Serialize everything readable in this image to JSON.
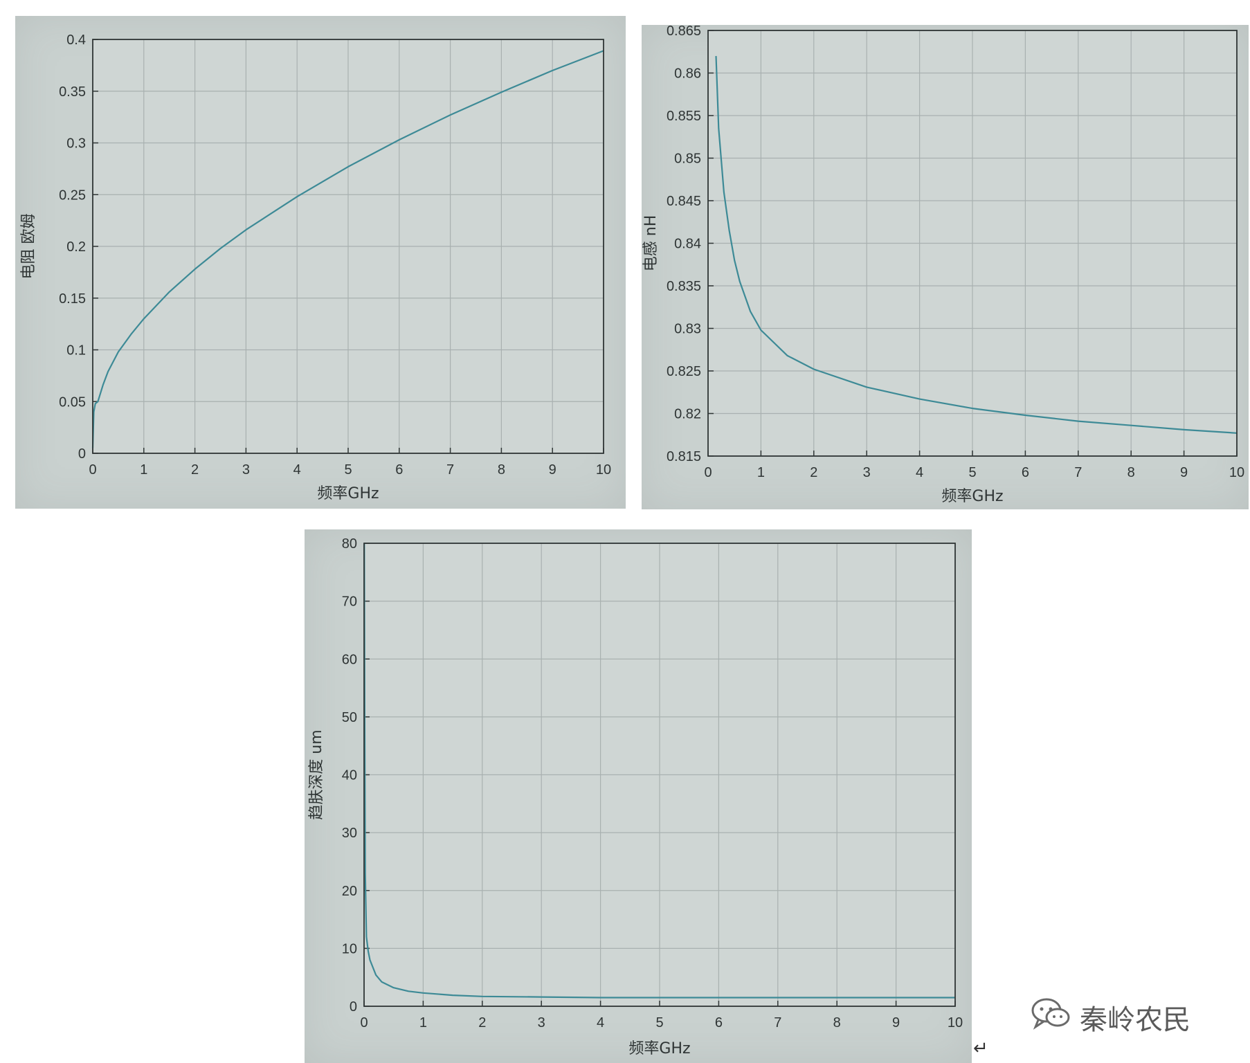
{
  "chart_data": [
    {
      "type": "line",
      "xlabel": "频率GHz",
      "ylabel": "电阻 欧姆",
      "xlim": [
        0,
        10
      ],
      "ylim": [
        0,
        0.4
      ],
      "xticks": [
        "0",
        "1",
        "2",
        "3",
        "4",
        "5",
        "6",
        "7",
        "8",
        "9",
        "10"
      ],
      "yticks": [
        "0",
        "0.05",
        "0.1",
        "0.15",
        "0.2",
        "0.25",
        "0.3",
        "0.35",
        "0.4"
      ],
      "grid": true,
      "line_color": "#3d8a96",
      "series": [
        {
          "x": [
            0,
            0.02,
            0.05,
            0.1,
            0.15,
            0.2,
            0.3,
            0.5,
            0.75,
            1,
            1.5,
            2,
            2.5,
            3,
            4,
            5,
            6,
            7,
            8,
            9,
            10
          ],
          "values": [
            0.005,
            0.04,
            0.048,
            0.05,
            0.058,
            0.066,
            0.079,
            0.098,
            0.115,
            0.13,
            0.156,
            0.178,
            0.198,
            0.216,
            0.248,
            0.277,
            0.303,
            0.327,
            0.349,
            0.37,
            0.389
          ]
        }
      ]
    },
    {
      "type": "line",
      "xlabel": "频率GHz",
      "ylabel": "电感 nH",
      "xlim": [
        0,
        10
      ],
      "ylim": [
        0.815,
        0.865
      ],
      "xticks": [
        "0",
        "1",
        "2",
        "3",
        "4",
        "5",
        "6",
        "7",
        "8",
        "9",
        "10"
      ],
      "yticks": [
        "0.815",
        "0.82",
        "0.825",
        "0.83",
        "0.835",
        "0.84",
        "0.845",
        "0.85",
        "0.855",
        "0.86",
        "0.865"
      ],
      "grid": true,
      "line_color": "#3d8a96",
      "series": [
        {
          "x": [
            0.15,
            0.2,
            0.3,
            0.4,
            0.5,
            0.6,
            0.8,
            1,
            1.5,
            2,
            3,
            4,
            5,
            6,
            7,
            8,
            9,
            10
          ],
          "values": [
            0.862,
            0.8535,
            0.846,
            0.8415,
            0.838,
            0.8355,
            0.832,
            0.8298,
            0.8268,
            0.8252,
            0.8231,
            0.8217,
            0.8206,
            0.8198,
            0.8191,
            0.8186,
            0.8181,
            0.8177
          ]
        }
      ]
    },
    {
      "type": "line",
      "xlabel": "频率GHz",
      "ylabel": "趋肤深度 um",
      "xlim": [
        0,
        10
      ],
      "ylim": [
        0,
        80
      ],
      "xticks": [
        "0",
        "1",
        "2",
        "3",
        "4",
        "5",
        "6",
        "7",
        "8",
        "9",
        "10"
      ],
      "yticks": [
        "0",
        "10",
        "20",
        "30",
        "40",
        "50",
        "60",
        "70",
        "80"
      ],
      "grid": true,
      "line_color": "#3d8a96",
      "series": [
        {
          "x": [
            0.003,
            0.01,
            0.02,
            0.04,
            0.07,
            0.1,
            0.2,
            0.3,
            0.5,
            0.75,
            1,
            1.5,
            2,
            3,
            4,
            5,
            6,
            7,
            8,
            9,
            10
          ],
          "values": [
            80,
            50,
            23,
            12,
            9.5,
            8,
            5.4,
            4.2,
            3.2,
            2.6,
            2.3,
            1.9,
            1.7,
            1.6,
            1.5,
            1.5,
            1.5,
            1.5,
            1.5,
            1.5,
            1.5
          ]
        }
      ]
    }
  ],
  "watermark": {
    "icon": "wechat-icon",
    "text": "秦岭农民"
  },
  "return_mark": "↵"
}
